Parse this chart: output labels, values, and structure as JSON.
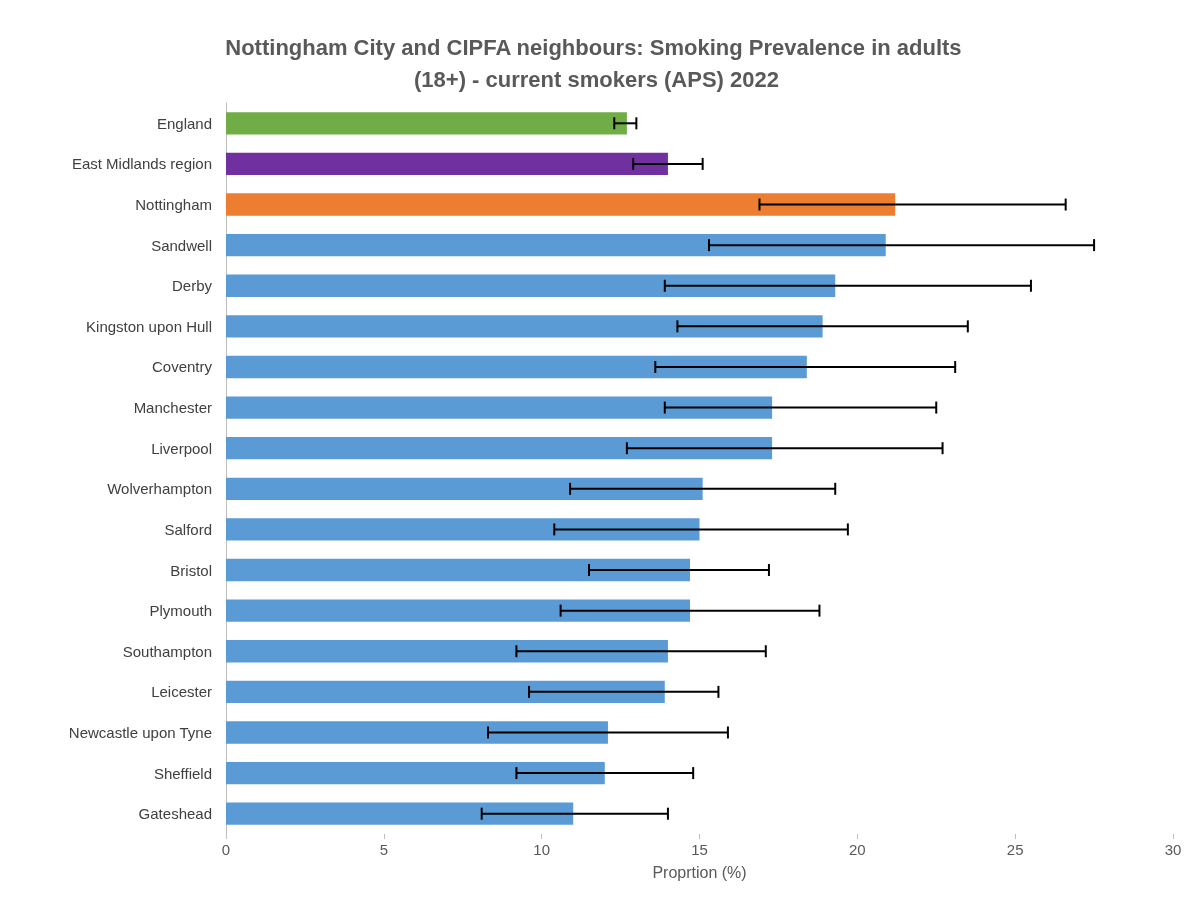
{
  "chart_data": {
    "type": "bar",
    "orientation": "horizontal",
    "title": "Nottingham City and CIPFA neighbours: Smoking Prevalence in adults (18+) - current smokers (APS) 2022",
    "xlabel": "Proprtion (%)",
    "categories": [
      "England",
      "East Midlands region",
      "Nottingham",
      "Sandwell",
      "Derby",
      "Kingston upon Hull",
      "Coventry",
      "Manchester",
      "Liverpool",
      "Wolverhampton",
      "Salford",
      "Bristol",
      "Plymouth",
      "Southampton",
      "Leicester",
      "Newcastle upon Tyne",
      "Sheffield",
      "Gateshead"
    ],
    "values": [
      12.7,
      14.0,
      21.2,
      20.9,
      19.3,
      18.9,
      18.4,
      17.3,
      17.3,
      15.1,
      15.0,
      14.7,
      14.7,
      14.0,
      13.9,
      12.1,
      12.0,
      11.0
    ],
    "errors": [
      [
        12.3,
        13.0
      ],
      [
        12.9,
        15.1
      ],
      [
        16.9,
        26.6
      ],
      [
        15.3,
        27.5
      ],
      [
        13.9,
        25.5
      ],
      [
        14.3,
        23.5
      ],
      [
        13.6,
        23.1
      ],
      [
        13.9,
        22.5
      ],
      [
        12.7,
        22.7
      ],
      [
        10.9,
        19.3
      ],
      [
        10.4,
        19.7
      ],
      [
        11.5,
        17.2
      ],
      [
        10.6,
        18.8
      ],
      [
        9.2,
        17.1
      ],
      [
        9.6,
        15.6
      ],
      [
        8.3,
        15.9
      ],
      [
        9.2,
        14.8
      ],
      [
        8.1,
        14.0
      ]
    ],
    "colors": [
      "#70ad47",
      "#7030a0",
      "#ed7d31",
      "#5b9bd5",
      "#5b9bd5",
      "#5b9bd5",
      "#5b9bd5",
      "#5b9bd5",
      "#5b9bd5",
      "#5b9bd5",
      "#5b9bd5",
      "#5b9bd5",
      "#5b9bd5",
      "#5b9bd5",
      "#5b9bd5",
      "#5b9bd5",
      "#5b9bd5",
      "#5b9bd5"
    ],
    "xlim": [
      0,
      30
    ],
    "xticks": [
      0,
      5,
      10,
      15,
      20,
      25,
      30
    ],
    "grid": false
  }
}
